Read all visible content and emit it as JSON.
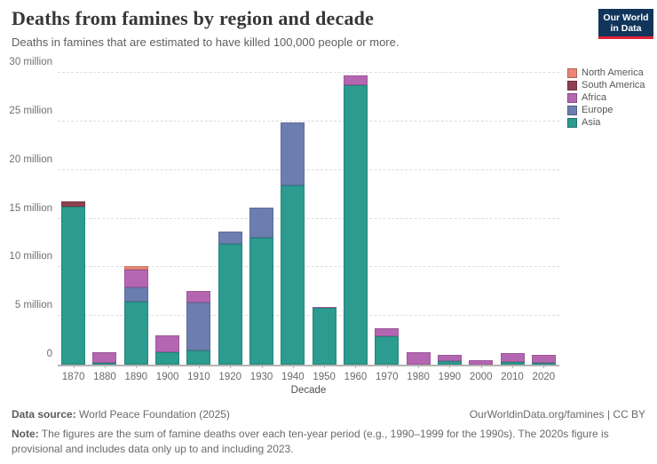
{
  "header": {
    "title": "Deaths from famines by region and decade",
    "subtitle": "Deaths in famines that are estimated to have killed 100,000 people or more.",
    "logo": {
      "line1": "Our World",
      "line2": "in Data",
      "bg_color": "#12355b",
      "accent_color": "#e0233a"
    }
  },
  "chart_data": {
    "type": "bar",
    "stacked": true,
    "title": "Deaths from famines by region and decade",
    "subtitle": "Deaths in famines that are estimated to have killed 100,000 people or more.",
    "categories": [
      "1870",
      "1880",
      "1890",
      "1900",
      "1910",
      "1920",
      "1930",
      "1940",
      "1950",
      "1960",
      "1970",
      "1980",
      "1990",
      "2000",
      "2010",
      "2020"
    ],
    "unit": "million deaths",
    "xlabel": "Decade",
    "ylabel": "",
    "ylim": [
      0,
      30
    ],
    "grid": "horizontal-dashed",
    "legend_position": "top-right",
    "series": [
      {
        "name": "Asia",
        "color": "#2C9B90",
        "values": [
          16.2,
          0.2,
          6.5,
          1.3,
          1.5,
          12.4,
          13.0,
          18.4,
          5.8,
          28.7,
          2.9,
          0,
          0.35,
          0,
          0.3,
          0.15
        ]
      },
      {
        "name": "Europe",
        "color": "#6C7EB0",
        "values": [
          0,
          0,
          1.4,
          0,
          4.9,
          1.3,
          3.1,
          6.5,
          0,
          0,
          0,
          0,
          0,
          0,
          0,
          0
        ]
      },
      {
        "name": "Africa",
        "color": "#B566B1",
        "values": [
          0,
          1.1,
          1.9,
          1.7,
          1.2,
          0,
          0,
          0,
          0.15,
          1.0,
          0.8,
          1.25,
          0.65,
          0.5,
          0.85,
          0.9
        ]
      },
      {
        "name": "South America",
        "color": "#8F4150",
        "values": [
          0.6,
          0,
          0,
          0,
          0,
          0,
          0,
          0,
          0,
          0,
          0,
          0,
          0,
          0,
          0,
          0
        ]
      },
      {
        "name": "North America",
        "color": "#EB8676",
        "values": [
          0,
          0,
          0.3,
          0,
          0,
          0,
          0,
          0,
          0,
          0,
          0,
          0,
          0,
          0,
          0,
          0
        ]
      }
    ],
    "totals": [
      16.8,
      1.3,
      10.1,
      3.0,
      7.6,
      13.7,
      16.1,
      24.9,
      5.95,
      29.7,
      3.7,
      1.25,
      1.0,
      0.5,
      1.15,
      1.05
    ],
    "yticks": [
      {
        "value": 0,
        "label": "0"
      },
      {
        "value": 5,
        "label": "5 million"
      },
      {
        "value": 10,
        "label": "10 million"
      },
      {
        "value": 15,
        "label": "15 million"
      },
      {
        "value": 20,
        "label": "20 million"
      },
      {
        "value": 25,
        "label": "25 million"
      },
      {
        "value": 30,
        "label": "30 million"
      }
    ],
    "legend": [
      {
        "label": "North America",
        "color": "#EB8676"
      },
      {
        "label": "South America",
        "color": "#8F4150"
      },
      {
        "label": "Africa",
        "color": "#B566B1"
      },
      {
        "label": "Europe",
        "color": "#6C7EB0"
      },
      {
        "label": "Asia",
        "color": "#2C9B90"
      }
    ]
  },
  "footer": {
    "datasource_label": "Data source:",
    "datasource_value": " World Peace Foundation (2025)",
    "link": "OurWorldinData.org/famines | CC BY",
    "note_label": "Note:",
    "note_text": " The figures are the sum of famine deaths over each ten-year period (e.g., 1990–1999 for the 1990s). The 2020s figure is provisional and includes data only up to and including 2023."
  }
}
